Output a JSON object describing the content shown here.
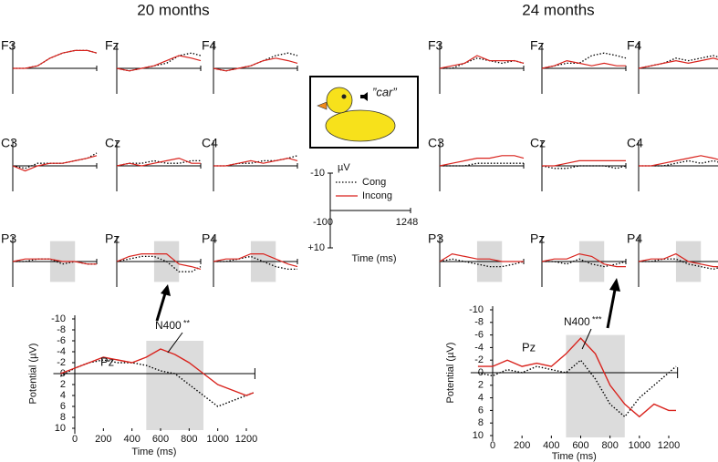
{
  "chart_data": [
    {
      "type": "multiples",
      "title": "20 months",
      "window": [
        500,
        900
      ],
      "x": [
        -100,
        100,
        300,
        500,
        700,
        900,
        1100,
        1248
      ],
      "panels": [
        {
          "label": "F3",
          "series": [
            {
              "values": [
                0,
                0,
                -1,
                -4,
                -6,
                -7,
                -7,
                -6
              ]
            },
            {
              "values": [
                0,
                0,
                -1,
                -4,
                -6,
                -7,
                -7,
                -6
              ]
            }
          ]
        },
        {
          "label": "Fz",
          "series": [
            {
              "values": [
                0,
                1,
                0,
                -1,
                -2,
                -5,
                -6,
                -5
              ]
            },
            {
              "values": [
                0,
                1,
                0,
                -1,
                -3,
                -5,
                -4,
                -3
              ]
            }
          ]
        },
        {
          "label": "F4",
          "series": [
            {
              "values": [
                0,
                1,
                0,
                -1,
                -3,
                -5,
                -6,
                -5
              ]
            },
            {
              "values": [
                0,
                1,
                0,
                -1,
                -3,
                -4,
                -3,
                -2
              ]
            }
          ]
        },
        {
          "label": "C3",
          "series": [
            {
              "values": [
                0,
                1,
                -1,
                -1,
                -1,
                -2,
                -3,
                -5
              ]
            },
            {
              "values": [
                0,
                2,
                0,
                -1,
                -1,
                -2,
                -3,
                -4
              ]
            }
          ]
        },
        {
          "label": "Cz",
          "series": [
            {
              "values": [
                0,
                -1,
                -1,
                -2,
                -1,
                -1,
                -2,
                -2
              ]
            },
            {
              "values": [
                0,
                -1,
                0,
                -1,
                -2,
                -3,
                -1,
                -1
              ]
            }
          ]
        },
        {
          "label": "C4",
          "series": [
            {
              "values": [
                0,
                0,
                -1,
                -1,
                -2,
                -2,
                -3,
                -4
              ]
            },
            {
              "values": [
                0,
                0,
                -1,
                -2,
                -1,
                -2,
                -3,
                -2
              ]
            }
          ]
        },
        {
          "label": "P3",
          "series": [
            {
              "values": [
                0,
                0,
                -1,
                -1,
                1,
                0,
                1,
                1
              ]
            },
            {
              "values": [
                0,
                -1,
                -1,
                -1,
                0,
                0,
                1,
                1
              ]
            }
          ]
        },
        {
          "label": "Pz",
          "series": [
            {
              "values": [
                0,
                -1,
                -2,
                -2,
                0,
                4,
                4,
                2
              ]
            },
            {
              "values": [
                0,
                -2,
                -3,
                -3,
                -3,
                1,
                2,
                3
              ]
            }
          ]
        },
        {
          "label": "P4",
          "series": [
            {
              "values": [
                0,
                0,
                -1,
                -2,
                0,
                2,
                3,
                3
              ]
            },
            {
              "values": [
                0,
                -1,
                -1,
                -3,
                -3,
                -1,
                1,
                2
              ]
            }
          ]
        }
      ]
    },
    {
      "type": "multiples",
      "title": "24 months",
      "window": [
        500,
        900
      ],
      "x": [
        -100,
        100,
        300,
        500,
        700,
        900,
        1100,
        1248
      ],
      "panels": [
        {
          "label": "F3",
          "series": [
            {
              "values": [
                0,
                0,
                -2,
                -4,
                -3,
                -2,
                -3,
                -2
              ]
            },
            {
              "values": [
                0,
                -1,
                -2,
                -5,
                -3,
                -3,
                -3,
                -2
              ]
            }
          ]
        },
        {
          "label": "Fz",
          "series": [
            {
              "values": [
                0,
                -1,
                -2,
                -2,
                -5,
                -6,
                -5,
                -4
              ]
            },
            {
              "values": [
                0,
                -1,
                -3,
                -2,
                -1,
                -2,
                -1,
                -1
              ]
            }
          ]
        },
        {
          "label": "F4",
          "series": [
            {
              "values": [
                0,
                -1,
                -2,
                -4,
                -3,
                -4,
                -5,
                -4
              ]
            },
            {
              "values": [
                0,
                -1,
                -2,
                -3,
                -2,
                -3,
                -4,
                -3
              ]
            }
          ]
        },
        {
          "label": "C3",
          "series": [
            {
              "values": [
                0,
                0,
                0,
                -1,
                -1,
                -1,
                -1,
                -1
              ]
            },
            {
              "values": [
                0,
                -1,
                -2,
                -3,
                -3,
                -4,
                -4,
                -3
              ]
            }
          ]
        },
        {
          "label": "Cz",
          "series": [
            {
              "values": [
                0,
                1,
                1,
                0,
                0,
                0,
                1,
                0
              ]
            },
            {
              "values": [
                0,
                0,
                -1,
                -2,
                -2,
                -2,
                -2,
                -2
              ]
            }
          ]
        },
        {
          "label": "C4",
          "series": [
            {
              "values": [
                0,
                0,
                0,
                -1,
                -2,
                -1,
                -2,
                -1
              ]
            },
            {
              "values": [
                0,
                0,
                -1,
                -2,
                -3,
                -4,
                -3,
                -2
              ]
            }
          ]
        },
        {
          "label": "P3",
          "series": [
            {
              "values": [
                0,
                -1,
                0,
                1,
                2,
                2,
                1,
                0
              ]
            },
            {
              "values": [
                0,
                -3,
                -2,
                -1,
                -1,
                0,
                0,
                0
              ]
            }
          ]
        },
        {
          "label": "Pz",
          "series": [
            {
              "values": [
                0,
                0,
                1,
                -1,
                1,
                2,
                1,
                0
              ]
            },
            {
              "values": [
                0,
                -1,
                -1,
                -3,
                -2,
                1,
                2,
                2
              ]
            }
          ]
        },
        {
          "label": "P4",
          "series": [
            {
              "values": [
                0,
                0,
                -1,
                -1,
                1,
                2,
                3,
                2
              ]
            },
            {
              "values": [
                0,
                -1,
                -1,
                -3,
                0,
                1,
                2,
                2
              ]
            }
          ]
        }
      ]
    },
    {
      "type": "scale",
      "stimulus": "”car”",
      "ylabel": "µV",
      "xlabel": "Time (ms)",
      "ylim": [
        10,
        -10
      ],
      "yticks": [
        {
          "value": -10,
          "label": "-10"
        },
        {
          "value": 10,
          "label": "+10"
        }
      ],
      "xlim": [
        -100,
        1248
      ],
      "xticks": [
        -100,
        1248
      ],
      "series": [
        {
          "name": "Cong",
          "color": "#000000",
          "style": "dotted"
        },
        {
          "name": "Incong",
          "color": "#d9231d",
          "style": "solid"
        }
      ]
    },
    {
      "type": "line",
      "title": "Pz",
      "annotation": "N400",
      "significance": "**",
      "window": [
        500,
        900
      ],
      "xlabel": "Time (ms)",
      "ylabel": "Potential (µV)",
      "xlim": [
        -150,
        1260
      ],
      "xticks": [
        0,
        200,
        400,
        600,
        800,
        1000,
        1200
      ],
      "ylim": [
        10,
        -10
      ],
      "yticks": [
        -10,
        -8,
        -6,
        -4,
        -2,
        0,
        2,
        4,
        6,
        8,
        10
      ],
      "x": [
        -100,
        0,
        100,
        200,
        300,
        400,
        500,
        600,
        700,
        800,
        900,
        1000,
        1100,
        1200,
        1250
      ],
      "series": [
        {
          "color": "#000000",
          "style": "dotted",
          "values": [
            0.5,
            -1,
            -2,
            -2.5,
            -2,
            -2,
            -1.5,
            -0.5,
            0,
            2,
            4,
            6,
            5,
            4,
            3.5
          ]
        },
        {
          "color": "#d9231d",
          "style": "solid",
          "values": [
            0,
            -1,
            -2,
            -3,
            -2.5,
            -2,
            -3,
            -4.5,
            -3.5,
            -2,
            0,
            2,
            3,
            4,
            3.5
          ]
        }
      ]
    },
    {
      "type": "line",
      "title": "Pz",
      "annotation": "N400",
      "significance": "***",
      "window": [
        500,
        900
      ],
      "xlabel": "Time (ms)",
      "ylabel": "Potential (µV)",
      "xlim": [
        -150,
        1260
      ],
      "xticks": [
        0,
        200,
        400,
        600,
        800,
        1000,
        1200
      ],
      "ylim": [
        10,
        -10
      ],
      "yticks": [
        -10,
        -8,
        -6,
        -4,
        -2,
        0,
        2,
        4,
        6,
        8,
        10
      ],
      "x": [
        -100,
        0,
        100,
        200,
        300,
        400,
        500,
        600,
        700,
        800,
        900,
        1000,
        1100,
        1200,
        1250
      ],
      "series": [
        {
          "color": "#000000",
          "style": "dotted",
          "values": [
            0,
            0.5,
            -0.5,
            0,
            -1,
            -0.5,
            0,
            -2,
            1,
            5,
            7,
            4,
            2,
            0,
            -1
          ]
        },
        {
          "color": "#d9231d",
          "style": "solid",
          "values": [
            -1,
            -1,
            -2,
            -1,
            -1.5,
            -1,
            -3,
            -5.5,
            -3,
            2,
            5,
            7,
            5,
            6,
            6
          ]
        }
      ]
    }
  ]
}
